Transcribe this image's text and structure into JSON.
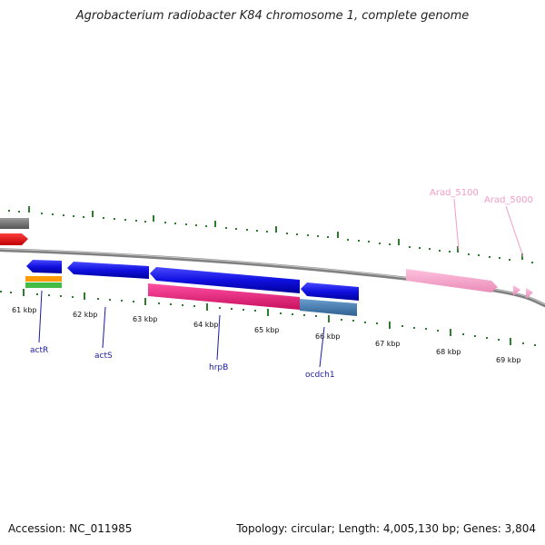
{
  "title": "Agrobacterium radiobacter K84 chromosome 1, complete genome",
  "footer": {
    "accession": "Accession: NC_011985",
    "summary": "Topology: circular; Length: 4,005,130 bp; Genes: 3,804"
  },
  "tick_labels": [
    "61 kbp",
    "62 kbp",
    "63 kbp",
    "64 kbp",
    "65 kbp",
    "66 kbp",
    "67 kbp",
    "68 kbp",
    "69 kbp"
  ],
  "gene_labels": {
    "actR": "actR",
    "actS": "actS",
    "hrpB": "hrpB",
    "ocdch1": "ocdch1",
    "arad5100": "Arad_5100",
    "arad5000": "Arad_5000"
  },
  "colors": {
    "backbone": "#808080",
    "tick": "#2e7d2e",
    "gene_blue": "#1a1ae6",
    "gene_pink_dark": "#e8207a",
    "gene_steel": "#4f86b8",
    "gene_pink_light": "#f4a3c9",
    "gene_red": "#ee1111",
    "gene_gray": "#7a7a7a",
    "gene_orange": "#ff9a00",
    "gene_green": "#44bb44"
  }
}
